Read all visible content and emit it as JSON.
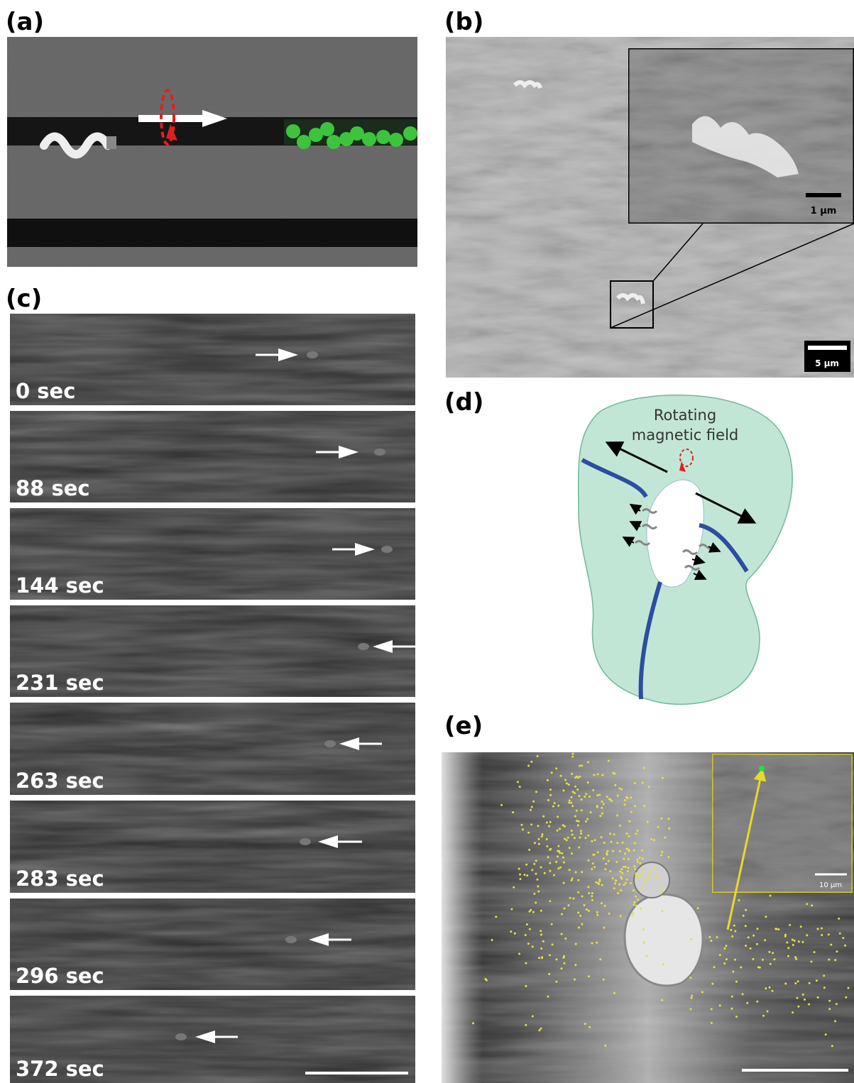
{
  "panels": {
    "a": {
      "label": "(a)"
    },
    "b": {
      "label": "(b)",
      "inset_scale_bar": "1 μm",
      "scale_bar": "5 μm"
    },
    "c": {
      "label": "(c)",
      "frames": [
        "0 sec",
        "88 sec",
        "144 sec",
        "231 sec",
        "263 sec",
        "283 sec",
        "296 sec",
        "372 sec"
      ]
    },
    "d": {
      "label": "(d)",
      "annotation": [
        "Rotating",
        "magnetic field"
      ]
    },
    "e": {
      "label": "(e)",
      "inset_scale_bar": "10 μm"
    }
  }
}
